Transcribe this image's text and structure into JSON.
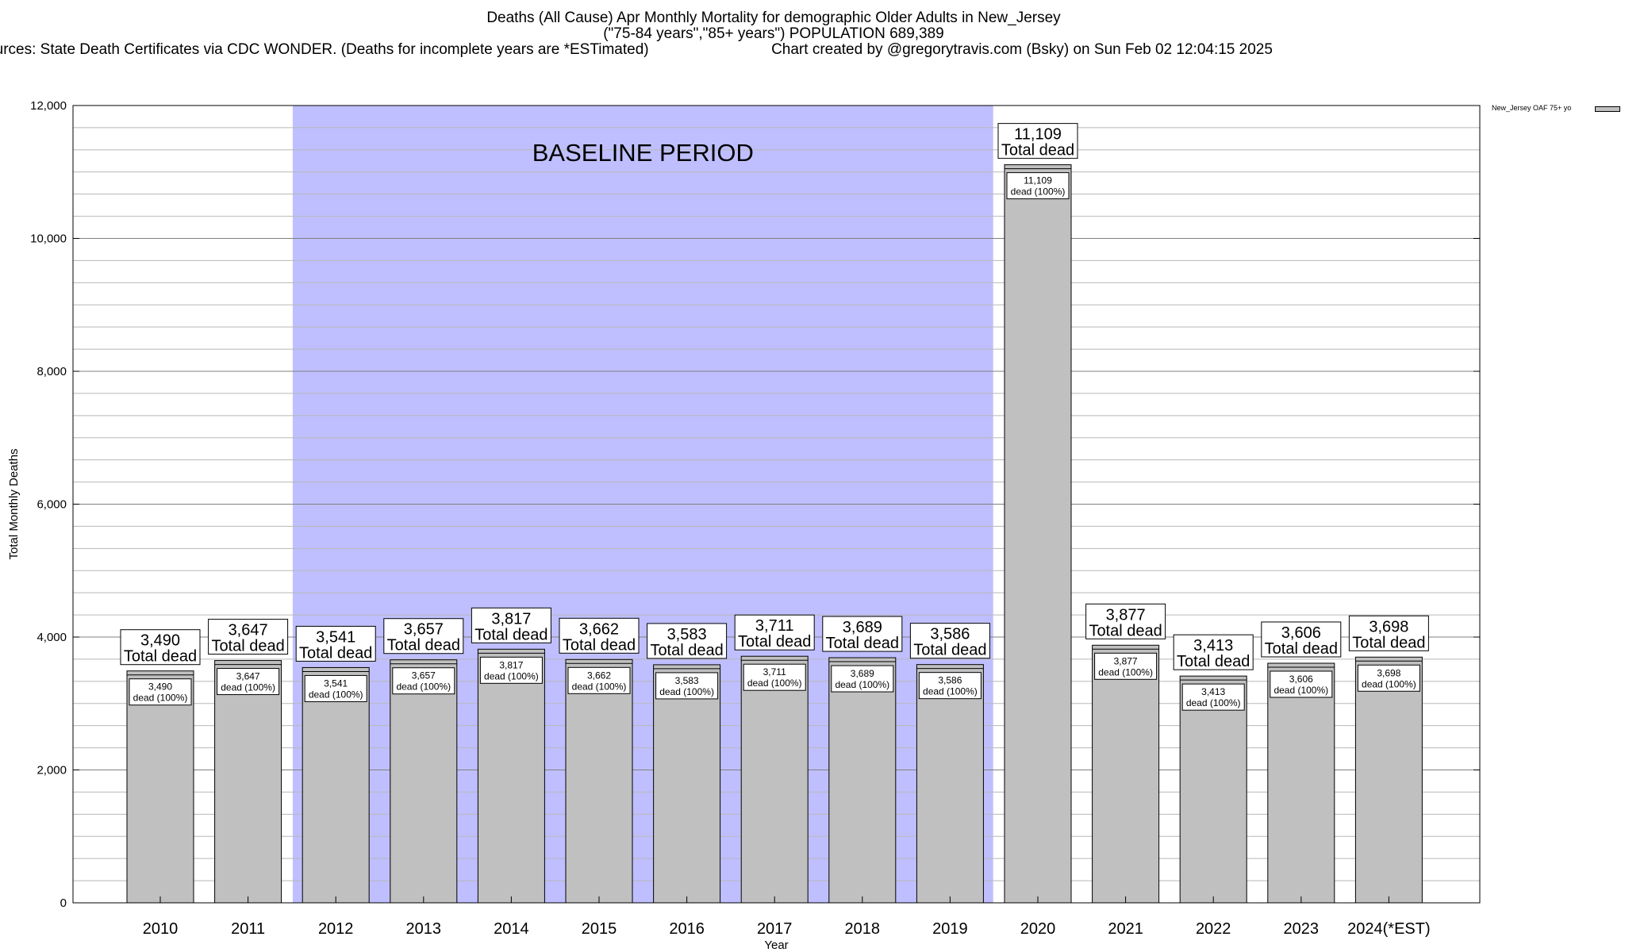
{
  "header": {
    "title": "Deaths (All Cause) Apr Monthly Mortality for demographic Older Adults in New_Jersey",
    "subtitle": "(\"75-84 years\",\"85+ years\") POPULATION 689,389",
    "sources": "Sources: State Death Certificates via CDC WONDER. (Deaths for incomplete years are *ESTimated)",
    "credit": "Chart created by @gregorytravis.com (Bsky) on Sun Feb 02 12:04:15 2025"
  },
  "legend": {
    "label": "New_Jersey OAF 75+ yo",
    "color": "#c0c0c0"
  },
  "chart_data": {
    "type": "bar",
    "xlabel": "Year",
    "ylabel": "Total Monthly Deaths",
    "ylim": [
      0,
      12000
    ],
    "yticks": [
      0,
      2000,
      4000,
      6000,
      8000,
      10000,
      12000
    ],
    "ytick_labels": [
      "0",
      "2,000",
      "4,000",
      "6,000",
      "8,000",
      "10,000",
      "12,000"
    ],
    "grid": true,
    "legend_position": "top-right",
    "categories": [
      "2010",
      "2011",
      "2012",
      "2013",
      "2014",
      "2015",
      "2016",
      "2017",
      "2018",
      "2019",
      "2020",
      "2021",
      "2022",
      "2023",
      "2024(*EST)"
    ],
    "values": [
      3490,
      3647,
      3541,
      3657,
      3817,
      3662,
      3583,
      3711,
      3689,
      3586,
      11109,
      3877,
      3413,
      3606,
      3698
    ],
    "value_labels": [
      "3,490",
      "3,647",
      "3,541",
      "3,657",
      "3,817",
      "3,662",
      "3,583",
      "3,711",
      "3,689",
      "3,586",
      "11,109",
      "3,877",
      "3,413",
      "3,606",
      "3,698"
    ],
    "total_label": "Total dead",
    "inner_label": "dead (100%)",
    "series": [
      {
        "values": [
          3490,
          3647,
          3541,
          3657,
          3817,
          3662,
          3583,
          3711,
          3689,
          3586,
          11109,
          3877,
          3413,
          3606,
          3698
        ],
        "color": "#c0c0c0"
      }
    ],
    "annotation": {
      "text": "BASELINE PERIOD",
      "start": "2012",
      "end": "2019",
      "color": "#bfbfff"
    }
  }
}
